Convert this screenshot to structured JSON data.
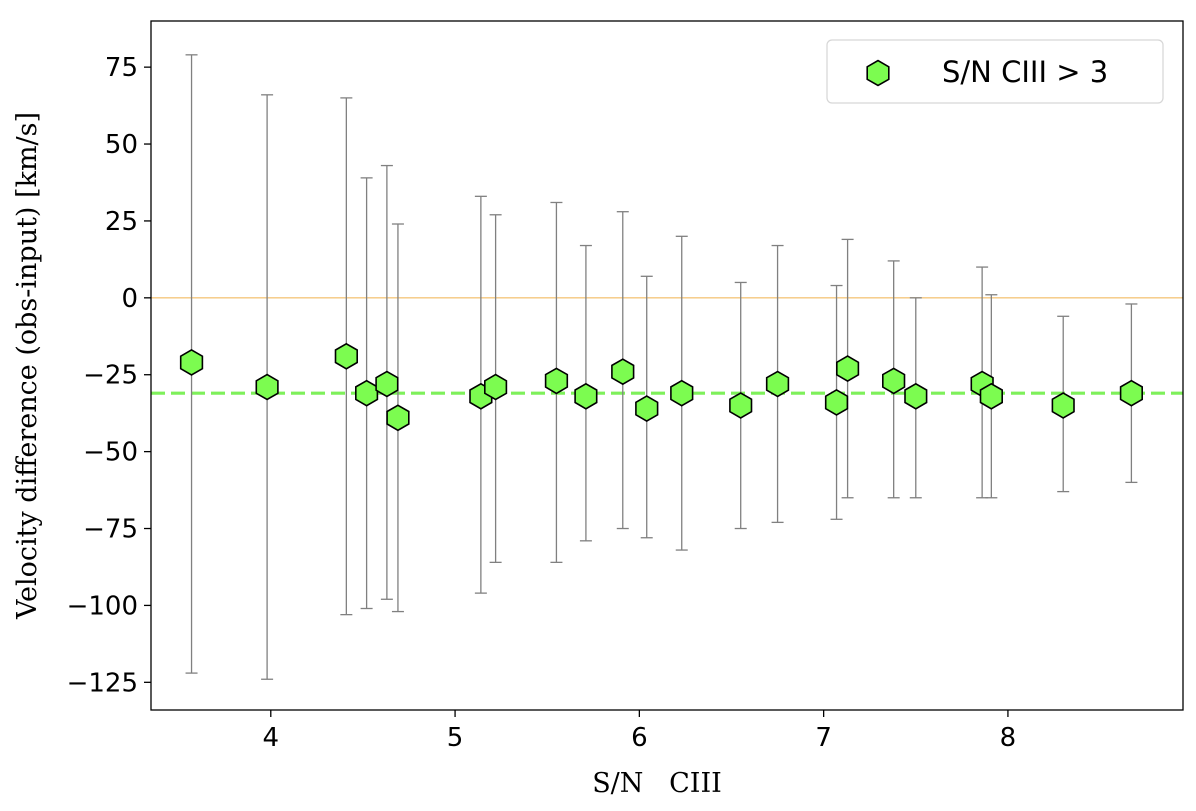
{
  "chart_data": {
    "type": "scatter",
    "title": "",
    "xlabel": "S/N   CIII",
    "ylabel": "Velocity difference (obs-input) [km/s]",
    "xlim": [
      3.35,
      8.95
    ],
    "ylim": [
      -134,
      90
    ],
    "xticks": [
      4,
      5,
      6,
      7,
      8
    ],
    "yticks": [
      75,
      50,
      25,
      0,
      -25,
      -50,
      -75,
      -100,
      -125
    ],
    "xtick_labels": [
      "4",
      "5",
      "6",
      "7",
      "8"
    ],
    "ytick_labels": [
      "75",
      "50",
      "25",
      "0",
      "−25",
      "−50",
      "−75",
      "−100",
      "−125"
    ],
    "grid": false,
    "legend": {
      "position": "top-right",
      "entries": [
        "S/N CIII > 3"
      ]
    },
    "reference_lines": [
      {
        "name": "zero-line",
        "y": 0,
        "color": "#f5c77e",
        "style": "solid"
      },
      {
        "name": "mean-line",
        "y": -31,
        "color": "#7ef05a",
        "style": "dashed"
      }
    ],
    "marker_color": "#7cfc50",
    "errorbar_color": "#808080",
    "series": [
      {
        "name": "S/N CIII > 3",
        "points": [
          {
            "x": 3.57,
            "y": -21,
            "ylo": -122,
            "yhi": 79
          },
          {
            "x": 3.98,
            "y": -29,
            "ylo": -124,
            "yhi": 66
          },
          {
            "x": 4.41,
            "y": -19,
            "ylo": -103,
            "yhi": 65
          },
          {
            "x": 4.52,
            "y": -31,
            "ylo": -101,
            "yhi": 39
          },
          {
            "x": 4.63,
            "y": -28,
            "ylo": -98,
            "yhi": 43
          },
          {
            "x": 4.69,
            "y": -39,
            "ylo": -102,
            "yhi": 24
          },
          {
            "x": 5.14,
            "y": -32,
            "ylo": -96,
            "yhi": 33
          },
          {
            "x": 5.22,
            "y": -29,
            "ylo": -86,
            "yhi": 27
          },
          {
            "x": 5.55,
            "y": -27,
            "ylo": -86,
            "yhi": 31
          },
          {
            "x": 5.71,
            "y": -32,
            "ylo": -79,
            "yhi": 17
          },
          {
            "x": 5.91,
            "y": -24,
            "ylo": -75,
            "yhi": 28
          },
          {
            "x": 6.04,
            "y": -36,
            "ylo": -78,
            "yhi": 7
          },
          {
            "x": 6.23,
            "y": -31,
            "ylo": -82,
            "yhi": 20
          },
          {
            "x": 6.55,
            "y": -35,
            "ylo": -75,
            "yhi": 5
          },
          {
            "x": 6.75,
            "y": -28,
            "ylo": -73,
            "yhi": 17
          },
          {
            "x": 7.07,
            "y": -34,
            "ylo": -72,
            "yhi": 4
          },
          {
            "x": 7.13,
            "y": -23,
            "ylo": -65,
            "yhi": 19
          },
          {
            "x": 7.38,
            "y": -27,
            "ylo": -65,
            "yhi": 12
          },
          {
            "x": 7.5,
            "y": -32,
            "ylo": -65,
            "yhi": 0
          },
          {
            "x": 7.86,
            "y": -28,
            "ylo": -65,
            "yhi": 10
          },
          {
            "x": 7.91,
            "y": -32,
            "ylo": -65,
            "yhi": 1
          },
          {
            "x": 8.3,
            "y": -35,
            "ylo": -63,
            "yhi": -6
          },
          {
            "x": 8.67,
            "y": -31,
            "ylo": -60,
            "yhi": -2
          }
        ]
      }
    ]
  }
}
